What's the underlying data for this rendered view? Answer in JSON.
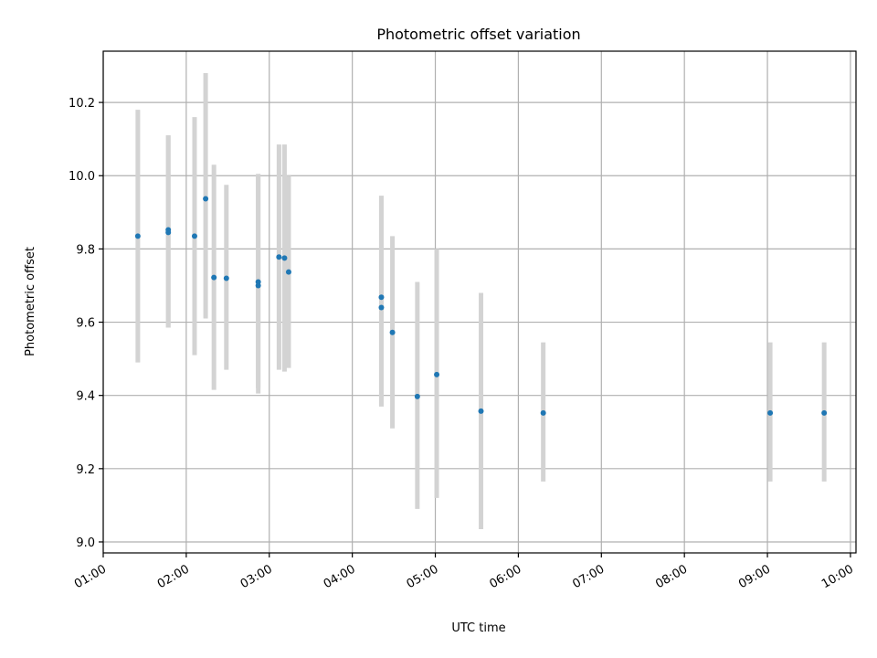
{
  "chart_data": {
    "type": "scatter",
    "title": "Photometric offset variation",
    "xlabel": "UTC time",
    "ylabel": "Photometric offset",
    "x_ticks": [
      "01:00",
      "02:00",
      "03:00",
      "04:00",
      "05:00",
      "06:00",
      "07:00",
      "08:00",
      "09:00",
      "10:00"
    ],
    "y_ticks": [
      "9.0",
      "9.2",
      "9.4",
      "9.6",
      "9.8",
      "10.0",
      "10.2"
    ],
    "xlim": [
      "01:00",
      "10:04"
    ],
    "ylim": [
      8.97,
      10.34
    ],
    "grid": true,
    "colors": {
      "point": "#1f77b4",
      "errorbar": "#d3d3d3"
    },
    "points": [
      {
        "x": "01:25",
        "y": 9.835,
        "ylow": 9.49,
        "yhigh": 10.18
      },
      {
        "x": "01:47",
        "y": 9.852,
        "ylow": 9.585,
        "yhigh": 10.11
      },
      {
        "x": "01:47",
        "y": 9.845,
        "ylow": 9.585,
        "yhigh": 10.11
      },
      {
        "x": "02:06",
        "y": 9.835,
        "ylow": 9.51,
        "yhigh": 10.16
      },
      {
        "x": "02:14",
        "y": 9.937,
        "ylow": 9.61,
        "yhigh": 10.28
      },
      {
        "x": "02:20",
        "y": 9.722,
        "ylow": 9.415,
        "yhigh": 10.03
      },
      {
        "x": "02:29",
        "y": 9.72,
        "ylow": 9.47,
        "yhigh": 9.975
      },
      {
        "x": "02:52",
        "y": 9.71,
        "ylow": 9.405,
        "yhigh": 10.005
      },
      {
        "x": "02:52",
        "y": 9.7,
        "ylow": 9.42,
        "yhigh": 10.0
      },
      {
        "x": "03:07",
        "y": 9.778,
        "ylow": 9.47,
        "yhigh": 10.085
      },
      {
        "x": "03:11",
        "y": 9.775,
        "ylow": 9.465,
        "yhigh": 10.085
      },
      {
        "x": "03:14",
        "y": 9.737,
        "ylow": 9.475,
        "yhigh": 10.0
      },
      {
        "x": "04:21",
        "y": 9.668,
        "ylow": 9.37,
        "yhigh": 9.945
      },
      {
        "x": "04:21",
        "y": 9.64,
        "ylow": 9.37,
        "yhigh": 9.945
      },
      {
        "x": "04:29",
        "y": 9.572,
        "ylow": 9.31,
        "yhigh": 9.835
      },
      {
        "x": "04:47",
        "y": 9.397,
        "ylow": 9.09,
        "yhigh": 9.71
      },
      {
        "x": "05:01",
        "y": 9.457,
        "ylow": 9.12,
        "yhigh": 9.8
      },
      {
        "x": "05:33",
        "y": 9.357,
        "ylow": 9.035,
        "yhigh": 9.68
      },
      {
        "x": "06:18",
        "y": 9.352,
        "ylow": 9.165,
        "yhigh": 9.545
      },
      {
        "x": "09:02",
        "y": 9.352,
        "ylow": 9.165,
        "yhigh": 9.545
      },
      {
        "x": "09:41",
        "y": 9.352,
        "ylow": 9.165,
        "yhigh": 9.545
      }
    ]
  }
}
